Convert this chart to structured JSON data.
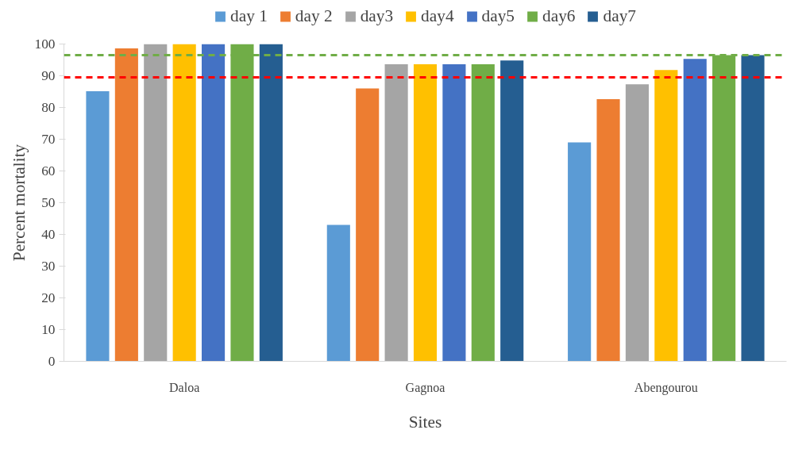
{
  "chart_data": {
    "type": "bar",
    "xlabel": "Sites",
    "ylabel": "Percent mortality",
    "categories": [
      "Daloa",
      "Gagnoa",
      "Abengourou"
    ],
    "series": [
      {
        "name": "day 1",
        "color": "#5b9bd5",
        "values": [
          85.1,
          43,
          69
        ]
      },
      {
        "name": "day 2",
        "color": "#ed7d31",
        "values": [
          98.6,
          86,
          82.6
        ]
      },
      {
        "name": "day3",
        "color": "#a5a5a5",
        "values": [
          100,
          93.6,
          87.3
        ]
      },
      {
        "name": "day4",
        "color": "#ffc000",
        "values": [
          100,
          93.6,
          91.8
        ]
      },
      {
        "name": "day5",
        "color": "#4472c4",
        "values": [
          100,
          93.6,
          95.3
        ]
      },
      {
        "name": "day6",
        "color": "#70ad47",
        "values": [
          100,
          93.6,
          96.5
        ]
      },
      {
        "name": "day7",
        "color": "#255e91",
        "values": [
          100,
          94.8,
          96.5
        ]
      }
    ],
    "ylim": [
      0,
      100
    ],
    "yticks": [
      0,
      10,
      20,
      30,
      40,
      50,
      60,
      70,
      80,
      90,
      100
    ],
    "ref_lines": [
      {
        "axis": "y",
        "value": 96.5,
        "color": "#70ad47",
        "line_style": "dashed"
      },
      {
        "axis": "y",
        "value": 89.5,
        "color": "#ff0000",
        "line_style": "dashed"
      }
    ],
    "grid": false,
    "legend": "top"
  }
}
